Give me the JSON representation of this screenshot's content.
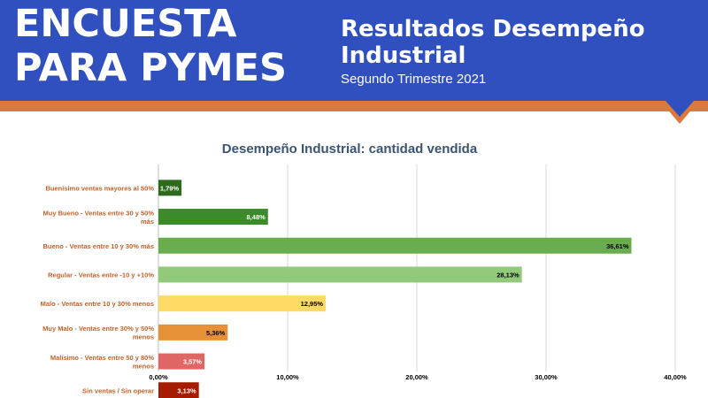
{
  "banner": {
    "left_line1": "ENCUESTA",
    "left_line2": "PARA PYMES",
    "title_line1": "Resultados Desempeño",
    "title_line2": "Industrial",
    "subtitle": "Segundo Trimestre 2021"
  },
  "colors": {
    "banner": "#3050c0",
    "stripe": "#d9793a",
    "title": "#3a5474",
    "category_label": "#c0622a"
  },
  "chart_data": {
    "type": "bar",
    "orientation": "horizontal",
    "title": "Desempeño Industrial: cantidad vendida",
    "categories": [
      "Buenisimo ventas mayores  al 50%",
      "Muy Bueno - Ventas entre 30 y 50% más",
      "Bueno - Ventas entre 10 y 30% más",
      "Regular - Ventas entre -10 y +10%",
      "Malo - Ventas entre 10 y 30% menos",
      "Muy Malo - Ventas entre 30% y 50% menos",
      "Malísimo - Ventas entre 50 y 80% menos",
      "Sin ventas / Sin operar"
    ],
    "values": [
      1.79,
      8.48,
      36.61,
      28.13,
      12.95,
      5.36,
      3.57,
      3.13
    ],
    "data_labels": [
      "1,79%",
      "8,48%",
      "36,61%",
      "28,13%",
      "12,95%",
      "5,36%",
      "3,57%",
      "3,13%"
    ],
    "bar_colors": [
      "#2f6b1f",
      "#3d8a2a",
      "#6aad4e",
      "#93c97a",
      "#ffd966",
      "#e69138",
      "#e06666",
      "#a61c00"
    ],
    "label_colors": [
      "#ffffff",
      "#ffffff",
      "#000000",
      "#000000",
      "#000000",
      "#000000",
      "#ffffff",
      "#ffffff"
    ],
    "xlim": [
      0,
      40
    ],
    "x_ticks": [
      "0,00%",
      "10,00%",
      "20,00%",
      "30,00%",
      "40,00%"
    ],
    "x_tick_values": [
      0,
      10,
      20,
      30,
      40
    ],
    "grid": true,
    "legend": "none"
  }
}
